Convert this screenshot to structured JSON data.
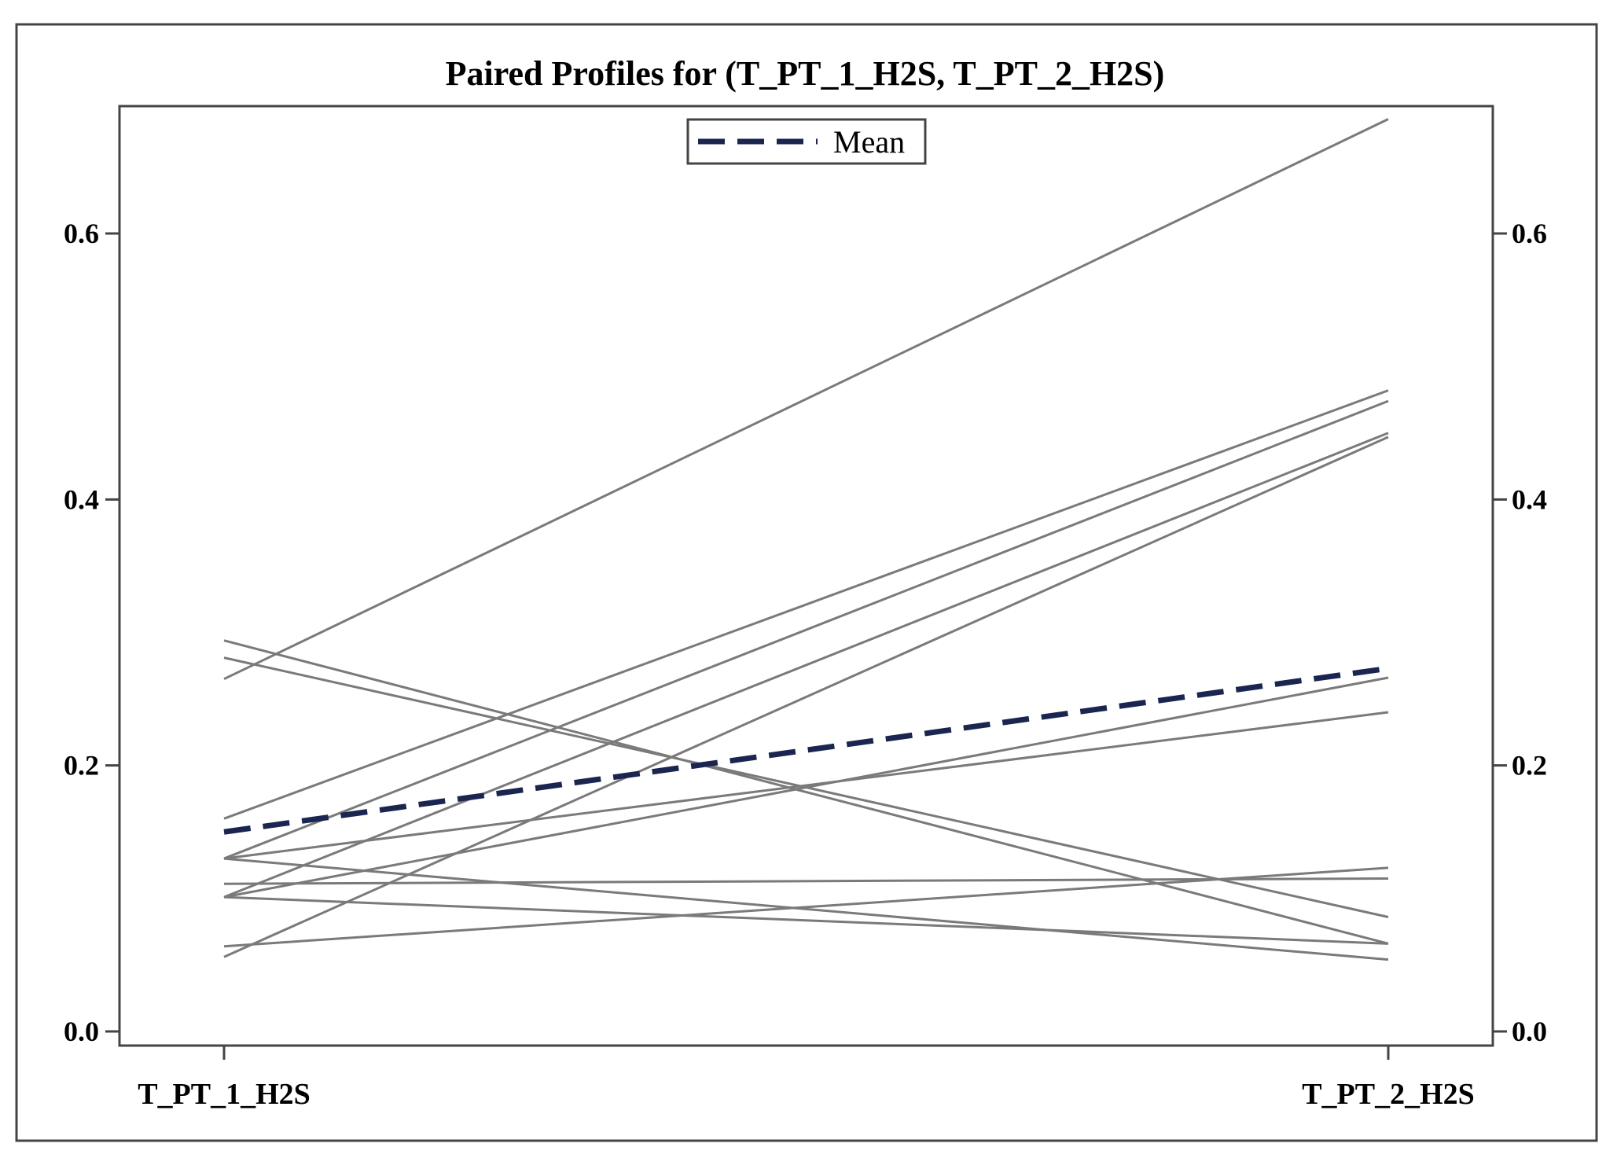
{
  "chart_data": {
    "type": "line",
    "title": "Paired Profiles for (T_PT_1_H2S, T_PT_2_H2S)",
    "categories": [
      "T_PT_1_H2S",
      "T_PT_2_H2S"
    ],
    "ylim": [
      0.0,
      0.7
    ],
    "yticks": [
      0.0,
      0.2,
      0.4,
      0.6
    ],
    "ytick_labels": [
      "0.0",
      "0.2",
      "0.4",
      "0.6"
    ],
    "right_axis_mirrored": true,
    "grid": false,
    "legend": {
      "position": "top-center",
      "entries": [
        {
          "label": "Mean",
          "style": "dashed",
          "color": "#1a2550"
        }
      ]
    },
    "series": [
      {
        "values": [
          0.265,
          0.686
        ]
      },
      {
        "values": [
          0.16,
          0.482
        ]
      },
      {
        "values": [
          0.13,
          0.474
        ]
      },
      {
        "values": [
          0.101,
          0.45
        ]
      },
      {
        "values": [
          0.056,
          0.447
        ]
      },
      {
        "values": [
          0.294,
          0.066
        ]
      },
      {
        "values": [
          0.281,
          0.086
        ]
      },
      {
        "values": [
          0.101,
          0.266
        ]
      },
      {
        "values": [
          0.13,
          0.24
        ]
      },
      {
        "values": [
          0.111,
          0.115
        ]
      },
      {
        "values": [
          0.064,
          0.123
        ]
      },
      {
        "values": [
          0.13,
          0.054
        ]
      },
      {
        "values": [
          0.101,
          0.066
        ]
      }
    ],
    "mean": {
      "label": "Mean",
      "values": [
        0.15,
        0.273
      ]
    },
    "colors": {
      "profile": "#7a7a7a",
      "mean": "#1a2550"
    }
  }
}
